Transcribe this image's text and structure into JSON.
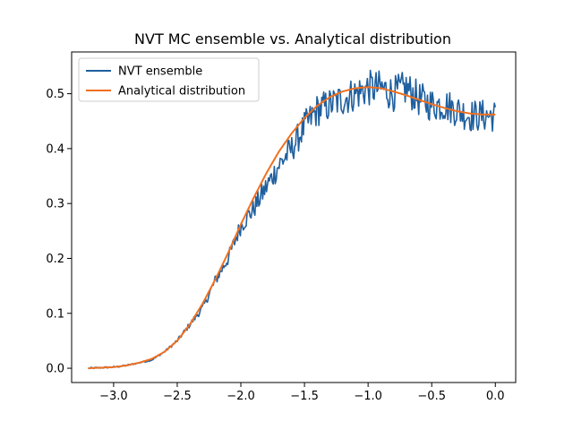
{
  "chart_data": {
    "type": "line",
    "title": "NVT MC ensemble vs. Analytical distribution",
    "xlabel": "",
    "ylabel": "",
    "xlim": [
      -3.33,
      0.16
    ],
    "ylim": [
      -0.026,
      0.576
    ],
    "xticks": [
      -3.0,
      -2.5,
      -2.0,
      -1.5,
      -1.0,
      -0.5,
      0.0
    ],
    "xtick_labels": [
      "−3.0",
      "−2.5",
      "−2.0",
      "−1.5",
      "−1.0",
      "−0.5",
      "0.0"
    ],
    "yticks": [
      0.0,
      0.1,
      0.2,
      0.3,
      0.4,
      0.5
    ],
    "ytick_labels": [
      "0.0",
      "0.1",
      "0.2",
      "0.3",
      "0.4",
      "0.5"
    ],
    "grid": false,
    "legend_position": "upper-left",
    "series": [
      {
        "name": "NVT ensemble",
        "color": "#1f5f9e",
        "style": "noisy",
        "x": [
          -3.2,
          -3.1,
          -3.0,
          -2.9,
          -2.8,
          -2.7,
          -2.6,
          -2.5,
          -2.4,
          -2.3,
          -2.2,
          -2.1,
          -2.0,
          -1.9,
          -1.8,
          -1.7,
          -1.6,
          -1.5,
          -1.4,
          -1.3,
          -1.2,
          -1.1,
          -1.0,
          -0.9,
          -0.8,
          -0.7,
          -0.6,
          -0.5,
          -0.4,
          -0.3,
          -0.2,
          -0.1,
          0.0
        ],
        "y": [
          0.0,
          0.001,
          0.002,
          0.005,
          0.01,
          0.015,
          0.03,
          0.05,
          0.08,
          0.11,
          0.16,
          0.2,
          0.26,
          0.29,
          0.33,
          0.37,
          0.4,
          0.44,
          0.47,
          0.48,
          0.49,
          0.5,
          0.51,
          0.51,
          0.5,
          0.51,
          0.49,
          0.48,
          0.48,
          0.47,
          0.46,
          0.46,
          0.46
        ]
      },
      {
        "name": "Analytical distribution",
        "color": "#f07020",
        "style": "smooth",
        "x": [
          -3.2,
          -3.1,
          -3.0,
          -2.9,
          -2.8,
          -2.7,
          -2.6,
          -2.5,
          -2.4,
          -2.3,
          -2.2,
          -2.1,
          -2.0,
          -1.9,
          -1.8,
          -1.7,
          -1.6,
          -1.5,
          -1.4,
          -1.3,
          -1.2,
          -1.1,
          -1.0,
          -0.9,
          -0.8,
          -0.7,
          -0.6,
          -0.5,
          -0.4,
          -0.3,
          -0.2,
          -0.1,
          0.0
        ],
        "y": [
          0.0,
          0.001,
          0.002,
          0.005,
          0.01,
          0.017,
          0.03,
          0.05,
          0.08,
          0.118,
          0.162,
          0.21,
          0.262,
          0.31,
          0.355,
          0.395,
          0.428,
          0.456,
          0.478,
          0.494,
          0.504,
          0.51,
          0.512,
          0.51,
          0.504,
          0.497,
          0.489,
          0.481,
          0.474,
          0.468,
          0.464,
          0.462,
          0.462
        ]
      }
    ]
  }
}
